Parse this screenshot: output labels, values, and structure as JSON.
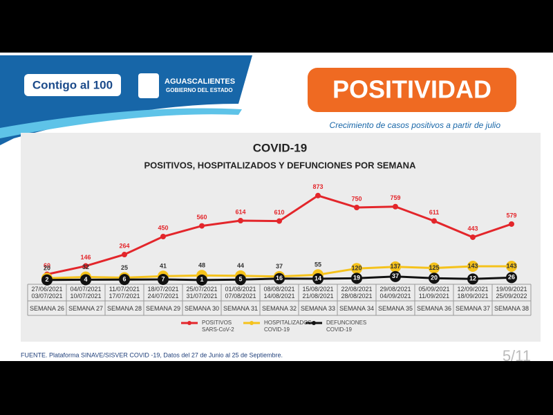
{
  "header": {
    "logo": "Contigo al 100",
    "government": "AGUASCALIENTES",
    "government_sub": "GOBIERNO DEL ESTADO",
    "badge": "POSITIVIDAD",
    "tagline": "Crecimiento de casos positivos a partir de julio"
  },
  "chart_data": {
    "type": "line",
    "title": "COVID-19",
    "subtitle": "POSITIVOS, HOSPITALIZADOS Y DEFUNCIONES POR SEMANA",
    "categories": [
      "27/06/2021 03/07/2021",
      "04/07/2021 10/07/2021",
      "11/07/2021 17/07/2021",
      "18/07/2021 24/07/2021",
      "25/07/2021 31/07/2021",
      "01/08/2021 07/08/2021",
      "08/08/2021 14/08/2021",
      "15/08/2021 21/08/2021",
      "22/08/2021 28/08/2021",
      "29/08/2021 04/09/2021",
      "05/09/2021 11/09/2021",
      "12/09/2021 18/09/2021",
      "19/09/2021 25/09/2022"
    ],
    "weeks": [
      "SEMANA 26",
      "SEMANA 27",
      "SEMANA 28",
      "SEMANA 29",
      "SEMANA 30",
      "SEMANA 31",
      "SEMANA 32",
      "SEMANA 33",
      "SEMANA 34",
      "SEMANA 35",
      "SEMANA 36",
      "SEMANA 37",
      "SEMANA 38"
    ],
    "series": [
      {
        "name": "POSITIVOS SARS-CoV-2",
        "color": "#e3262b",
        "values": [
          60,
          146,
          264,
          450,
          560,
          614,
          610,
          873,
          750,
          759,
          611,
          443,
          579
        ]
      },
      {
        "name": "HOSPITALIZADOS COVID-19",
        "color": "#f5c21b",
        "values": [
          20,
          32,
          25,
          41,
          48,
          44,
          37,
          55,
          120,
          137,
          125,
          143,
          143
        ]
      },
      {
        "name": "DEFUNCIONES COVID-19",
        "color": "#111111",
        "values": [
          2,
          4,
          6,
          7,
          1,
          5,
          16,
          14,
          19,
          37,
          20,
          12,
          26
        ]
      }
    ]
  },
  "footer": {
    "source": "FUENTE. Plataforma SINAVE/SISVER COVID -19, Datos del 27 de Junio al 25 de Septiembre.",
    "page": "5/11"
  }
}
